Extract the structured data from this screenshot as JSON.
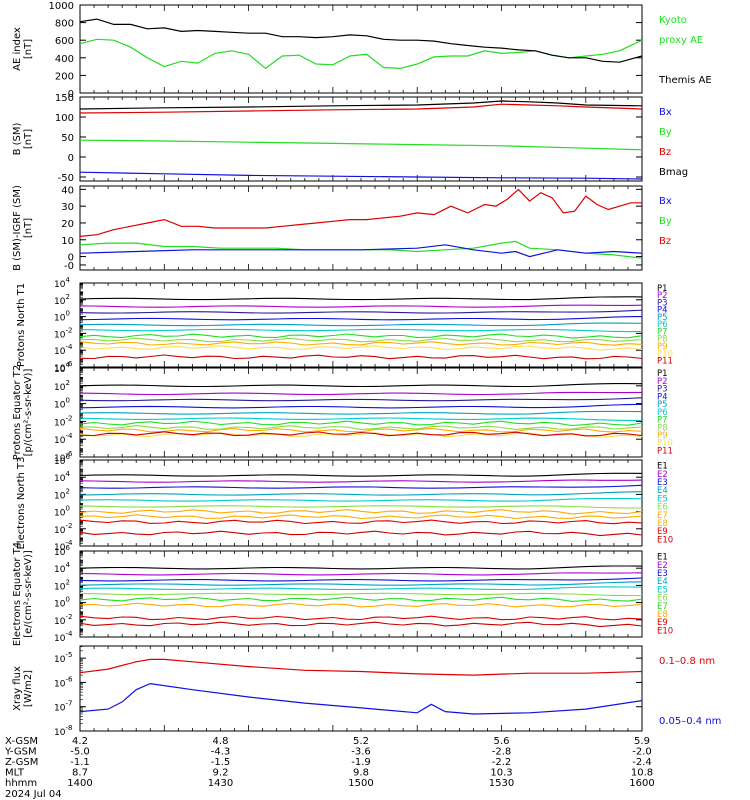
{
  "colors": {
    "black": "#000000",
    "red": "#dd0000",
    "green": "#22dd22",
    "blue": "#1010dd",
    "purple": "#aa00cc",
    "navy": "#2a1a9a",
    "teal": "#00a0c0",
    "cyan": "#00cccc",
    "ltgreen": "#88dd44",
    "orange": "#ffaa00",
    "yellow": "#ffe050",
    "darkred": "#cc0000"
  },
  "chart_data": [
    {
      "type": "line",
      "ylabel": "AE index [nT]",
      "ylim": [
        0,
        1000
      ],
      "ticks": [
        "0",
        "200",
        "400",
        "600",
        "800",
        "1000"
      ],
      "x_domain": [
        1400,
        1600
      ],
      "series": [
        {
          "name": "Kyoto proxy AE",
          "color": "green",
          "x": [
            1400,
            1406,
            1412,
            1418,
            1424,
            1430,
            1436,
            1442,
            1448,
            1454,
            1460,
            1466,
            1472,
            1478,
            1484,
            1490,
            1496,
            1502,
            1508,
            1514,
            1520,
            1526,
            1532,
            1538,
            1544,
            1550,
            1556,
            1562,
            1568,
            1574,
            1580,
            1586,
            1592,
            1600
          ],
          "y": [
            560,
            610,
            600,
            520,
            400,
            300,
            360,
            340,
            450,
            480,
            440,
            280,
            420,
            430,
            330,
            320,
            420,
            440,
            290,
            280,
            330,
            410,
            420,
            420,
            480,
            450,
            460,
            480,
            430,
            400,
            420,
            440,
            480,
            600
          ]
        },
        {
          "name": "Themis AE",
          "color": "black",
          "x": [
            1400,
            1406,
            1412,
            1418,
            1424,
            1430,
            1436,
            1442,
            1448,
            1454,
            1460,
            1466,
            1472,
            1478,
            1484,
            1490,
            1496,
            1502,
            1508,
            1514,
            1520,
            1526,
            1532,
            1538,
            1544,
            1550,
            1556,
            1562,
            1568,
            1574,
            1580,
            1586,
            1592,
            1600
          ],
          "y": [
            810,
            840,
            780,
            780,
            730,
            740,
            700,
            710,
            700,
            690,
            680,
            680,
            640,
            640,
            630,
            640,
            660,
            650,
            610,
            600,
            600,
            590,
            560,
            540,
            520,
            510,
            490,
            480,
            430,
            400,
            400,
            360,
            350,
            420
          ]
        }
      ],
      "labels": [
        {
          "text": "Kyoto",
          "color": "green",
          "row": 0
        },
        {
          "text": "proxy AE",
          "color": "green",
          "row": 1
        },
        {
          "text": "Themis AE",
          "color": "black",
          "row": 3
        }
      ]
    },
    {
      "type": "line",
      "ylabel": "B (SM) [nT]",
      "ylim": [
        -60,
        150
      ],
      "tick_values": [
        -50,
        0,
        50,
        100,
        150
      ],
      "ticks": [
        "-50",
        "0",
        "50",
        "100",
        "150"
      ],
      "x_domain": [
        1400,
        1600
      ],
      "series": [
        {
          "name": "Bmag",
          "color": "black",
          "x": [
            1400,
            1430,
            1460,
            1490,
            1520,
            1540,
            1550,
            1560,
            1570,
            1580,
            1600
          ],
          "y": [
            120,
            123,
            125,
            128,
            130,
            135,
            140,
            138,
            135,
            130,
            128
          ]
        },
        {
          "name": "Bz",
          "color": "red",
          "x": [
            1400,
            1430,
            1460,
            1490,
            1520,
            1540,
            1550,
            1560,
            1570,
            1580,
            1600
          ],
          "y": [
            110,
            112,
            115,
            118,
            120,
            125,
            132,
            130,
            128,
            125,
            120
          ]
        },
        {
          "name": "By",
          "color": "green",
          "x": [
            1400,
            1430,
            1460,
            1490,
            1520,
            1550,
            1580,
            1600
          ],
          "y": [
            42,
            40,
            37,
            34,
            31,
            28,
            22,
            18
          ]
        },
        {
          "name": "Bx",
          "color": "blue",
          "x": [
            1400,
            1430,
            1460,
            1490,
            1520,
            1550,
            1580,
            1600
          ],
          "y": [
            -38,
            -42,
            -46,
            -48,
            -50,
            -52,
            -53,
            -55
          ]
        }
      ],
      "labels": [
        {
          "text": "Bx",
          "color": "blue",
          "row": 0
        },
        {
          "text": "By",
          "color": "green",
          "row": 1
        },
        {
          "text": "Bz",
          "color": "red",
          "row": 2
        },
        {
          "text": "Bmag",
          "color": "black",
          "row": 3
        }
      ]
    },
    {
      "type": "line",
      "ylabel": "B (SM)-IGRF (SM) [nT]",
      "ylim": [
        -8,
        42
      ],
      "tick_values": [
        0,
        10,
        20,
        30,
        40
      ],
      "extra_tick_labels": [
        {
          "v": -5,
          "t": "-0"
        }
      ],
      "ticks": [
        "-0",
        "0",
        "10",
        "20",
        "30",
        "40"
      ],
      "x_domain": [
        1400,
        1600
      ],
      "series": [
        {
          "name": "Bz",
          "color": "red",
          "x": [
            1400,
            1406,
            1412,
            1418,
            1424,
            1430,
            1436,
            1442,
            1448,
            1454,
            1460,
            1466,
            1472,
            1478,
            1484,
            1490,
            1496,
            1502,
            1508,
            1514,
            1520,
            1526,
            1532,
            1538,
            1544,
            1548,
            1552,
            1556,
            1560,
            1564,
            1568,
            1572,
            1576,
            1580,
            1584,
            1588,
            1592,
            1596,
            1600
          ],
          "y": [
            12,
            13,
            16,
            18,
            20,
            22,
            18,
            18,
            17,
            17,
            17,
            17,
            18,
            19,
            20,
            21,
            22,
            22,
            23,
            24,
            26,
            25,
            30,
            26,
            31,
            30,
            34,
            40,
            33,
            38,
            35,
            26,
            27,
            36,
            31,
            28,
            30,
            32,
            32
          ]
        },
        {
          "name": "By",
          "color": "green",
          "x": [
            1400,
            1410,
            1420,
            1430,
            1440,
            1450,
            1460,
            1470,
            1480,
            1490,
            1500,
            1510,
            1520,
            1530,
            1540,
            1550,
            1555,
            1560,
            1570,
            1580,
            1590,
            1600
          ],
          "y": [
            7,
            8,
            8,
            6,
            6,
            5,
            5,
            5,
            4,
            4,
            4,
            4,
            3,
            4,
            5,
            8,
            9,
            5,
            4,
            2,
            1,
            -1
          ]
        },
        {
          "name": "Bx",
          "color": "blue",
          "x": [
            1400,
            1420,
            1440,
            1460,
            1480,
            1500,
            1520,
            1530,
            1540,
            1550,
            1555,
            1560,
            1570,
            1580,
            1590,
            1600
          ],
          "y": [
            2,
            3,
            4,
            4,
            4,
            4,
            5,
            7,
            4,
            2,
            3,
            0,
            4,
            2,
            3,
            2
          ]
        }
      ],
      "labels": [
        {
          "text": "Bx",
          "color": "blue",
          "row": 0
        },
        {
          "text": "By",
          "color": "green",
          "row": 1
        },
        {
          "text": "Bz",
          "color": "red",
          "row": 2
        }
      ]
    },
    {
      "type": "line",
      "log": true,
      "ylabel": "Protons North T1",
      "ylim_exp": [
        -6,
        4
      ],
      "x_domain": [
        1400,
        1600
      ],
      "levels": [
        {
          "name": "P1",
          "color": "black",
          "level": 2.1
        },
        {
          "name": "P2",
          "color": "purple",
          "level": 1.2
        },
        {
          "name": "P3",
          "color": "navy",
          "level": 0.5
        },
        {
          "name": "P4",
          "color": "blue",
          "level": -0.3
        },
        {
          "name": "P5",
          "color": "teal",
          "level": -1.0
        },
        {
          "name": "P6",
          "color": "cyan",
          "level": -1.6
        },
        {
          "name": "P7",
          "color": "green",
          "level": -2.3
        },
        {
          "name": "P8",
          "color": "ltgreen",
          "level": -2.8
        },
        {
          "name": "P9",
          "color": "orange",
          "level": -3.2
        },
        {
          "name": "P10",
          "color": "yellow",
          "level": -3.7
        },
        {
          "name": "P11",
          "color": "darkred",
          "level": -4.8
        }
      ]
    },
    {
      "type": "line",
      "log": true,
      "ylabel": "Protons Equator T2 [p/(cm²-s-sr-keV)]",
      "ylim_exp": [
        -6,
        4
      ],
      "x_domain": [
        1400,
        1600
      ],
      "levels": [
        {
          "name": "P1",
          "color": "black",
          "level": 2.0
        },
        {
          "name": "P2",
          "color": "purple",
          "level": 1.1
        },
        {
          "name": "P3",
          "color": "navy",
          "level": 0.4
        },
        {
          "name": "P4",
          "color": "blue",
          "level": -0.4
        },
        {
          "name": "P5",
          "color": "teal",
          "level": -1.1
        },
        {
          "name": "P6",
          "color": "cyan",
          "level": -1.7
        },
        {
          "name": "P7",
          "color": "green",
          "level": -2.2
        },
        {
          "name": "P8",
          "color": "ltgreen",
          "level": -2.7
        },
        {
          "name": "P9",
          "color": "orange",
          "level": -3.0
        },
        {
          "name": "P10",
          "color": "yellow",
          "level": -3.5
        },
        {
          "name": "P11",
          "color": "darkred",
          "level": -3.4
        }
      ]
    },
    {
      "type": "line",
      "log": true,
      "ylabel": "Electrons North T3",
      "ylim_exp": [
        -4,
        6
      ],
      "x_domain": [
        1400,
        1600
      ],
      "levels": [
        {
          "name": "E1",
          "color": "black",
          "level": 4.2
        },
        {
          "name": "E2",
          "color": "purple",
          "level": 3.5
        },
        {
          "name": "E3",
          "color": "blue",
          "level": 2.8
        },
        {
          "name": "E4",
          "color": "teal",
          "level": 2.0
        },
        {
          "name": "E5",
          "color": "cyan",
          "level": 1.3
        },
        {
          "name": "E6",
          "color": "ltgreen",
          "level": 0.6
        },
        {
          "name": "E7",
          "color": "orange",
          "level": 0.0
        },
        {
          "name": "E8",
          "color": "orange",
          "level": -0.6
        },
        {
          "name": "E9",
          "color": "red",
          "level": -1.2
        },
        {
          "name": "E10",
          "color": "darkred",
          "level": -2.5
        }
      ]
    },
    {
      "type": "line",
      "log": true,
      "ylabel": "Electrons Equator T4 [e/(cm²-s-sr-keV)]",
      "ylim_exp": [
        -4,
        6
      ],
      "x_domain": [
        1400,
        1600
      ],
      "levels": [
        {
          "name": "E1",
          "color": "black",
          "level": 4.0
        },
        {
          "name": "E2",
          "color": "purple",
          "level": 3.3
        },
        {
          "name": "E3",
          "color": "blue",
          "level": 2.6
        },
        {
          "name": "E4",
          "color": "teal",
          "level": 2.1
        },
        {
          "name": "E5",
          "color": "cyan",
          "level": 1.6
        },
        {
          "name": "E6",
          "color": "ltgreen",
          "level": 1.0
        },
        {
          "name": "E7",
          "color": "green",
          "level": 0.4
        },
        {
          "name": "E8",
          "color": "orange",
          "level": -0.3
        },
        {
          "name": "E9",
          "color": "red",
          "level": -1.8
        },
        {
          "name": "E10",
          "color": "darkred",
          "level": -2.5
        }
      ]
    },
    {
      "type": "line",
      "log": true,
      "ylabel": "Xray flux [W/m2]",
      "ylim_exp": [
        -8,
        -4.5
      ],
      "x_domain": [
        1400,
        1600
      ],
      "series": [
        {
          "name": "0.1–0.8 nm",
          "color": "red",
          "x": [
            1400,
            1410,
            1420,
            1425,
            1430,
            1440,
            1460,
            1480,
            1500,
            1520,
            1540,
            1560,
            1580,
            1600
          ],
          "y": [
            -5.6,
            -5.45,
            -5.15,
            -5.05,
            -5.05,
            -5.15,
            -5.35,
            -5.5,
            -5.55,
            -5.65,
            -5.7,
            -5.62,
            -5.62,
            -5.55
          ]
        },
        {
          "name": "0.05–0.4 nm",
          "color": "blue",
          "x": [
            1400,
            1410,
            1415,
            1420,
            1425,
            1440,
            1460,
            1480,
            1500,
            1520,
            1525,
            1530,
            1540,
            1560,
            1580,
            1600
          ],
          "y": [
            -7.2,
            -7.1,
            -6.8,
            -6.3,
            -6.05,
            -6.3,
            -6.6,
            -6.85,
            -7.05,
            -7.25,
            -6.9,
            -7.2,
            -7.3,
            -7.25,
            -7.1,
            -6.75
          ]
        }
      ],
      "labels": [
        {
          "text": "0.1–0.8 nm",
          "color": "red",
          "row": 0
        },
        {
          "text": "0.05–0.4 nm",
          "color": "blue",
          "row": 3
        }
      ]
    }
  ],
  "footer": {
    "rows": [
      {
        "label": "X-GSM",
        "values": [
          "4.2",
          "4.8",
          "5.2",
          "5.6",
          "5.9"
        ]
      },
      {
        "label": "Y-GSM",
        "values": [
          "-5.0",
          "-4.3",
          "-3.6",
          "-2.8",
          "-2.0"
        ]
      },
      {
        "label": "Z-GSM",
        "values": [
          "-1.1",
          "-1.5",
          "-1.9",
          "-2.2",
          "-2.4"
        ]
      },
      {
        "label": "MLT",
        "values": [
          "8.7",
          "9.2",
          "9.8",
          "10.3",
          "10.8"
        ]
      },
      {
        "label": "hhmm",
        "values": [
          "1400",
          "1430",
          "1500",
          "1530",
          "1600"
        ]
      }
    ],
    "date": "2024 Jul 04"
  }
}
